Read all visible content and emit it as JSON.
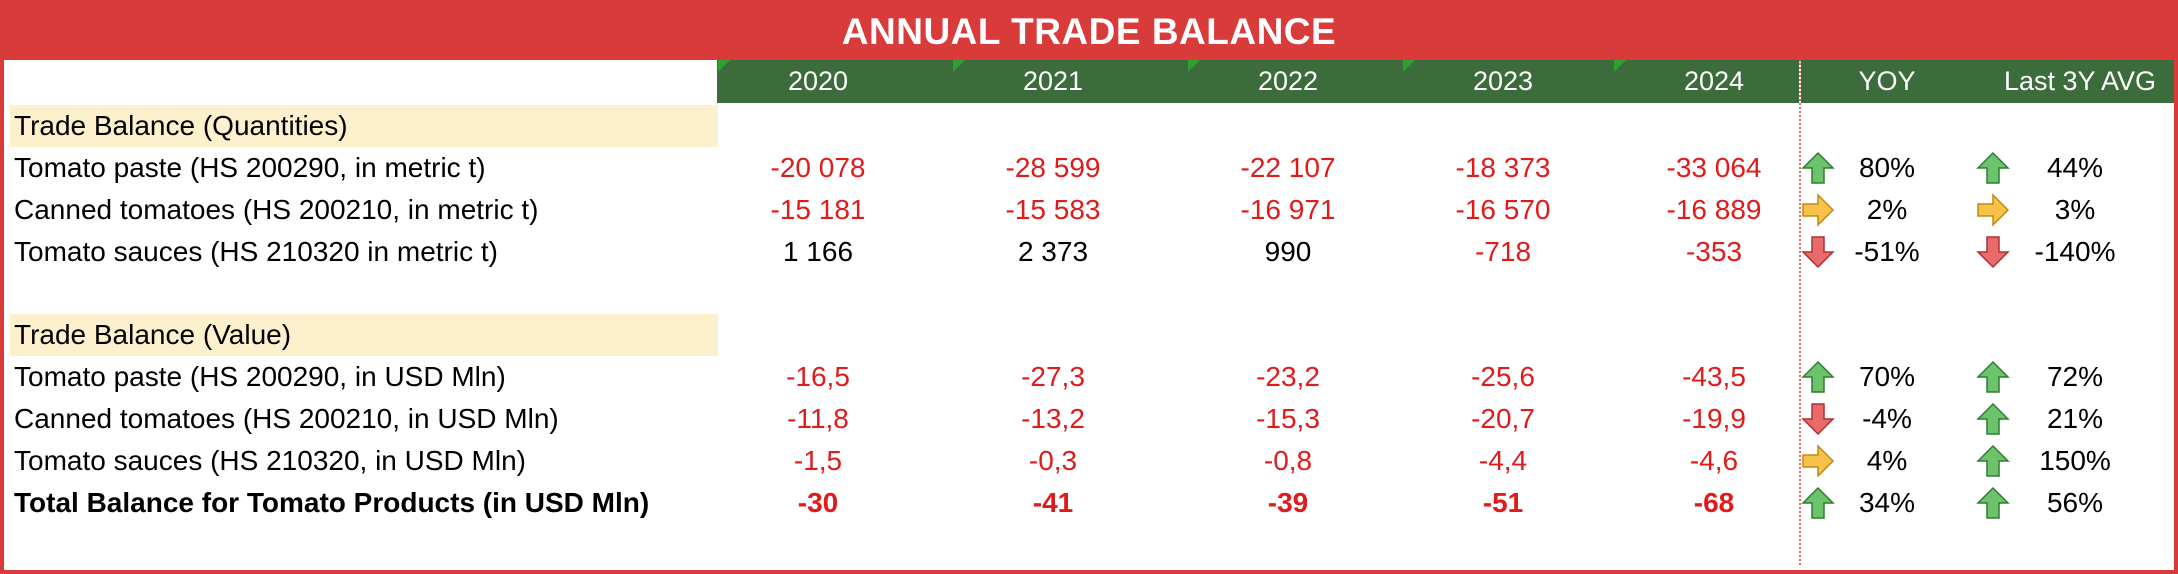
{
  "title": "ANNUAL TRADE BALANCE",
  "years": [
    "2020",
    "2021",
    "2022",
    "2023",
    "2024"
  ],
  "metrics_headers": [
    "YOY",
    "Last 3Y AVG"
  ],
  "sections": [
    {
      "heading": "Trade Balance (Quantities)",
      "rows": [
        {
          "label": "Tomato paste (HS 200290, in metric t)",
          "values": [
            "-20 078",
            "-28 599",
            "-22 107",
            "-18 373",
            "-33 064"
          ],
          "yoy": "80%",
          "yoy_icon": "up-arrow-icon",
          "avg": "44%",
          "avg_icon": "up-arrow-icon"
        },
        {
          "label": "Canned tomatoes (HS 200210, in metric t)",
          "values": [
            "-15 181",
            "-15 583",
            "-16 971",
            "-16 570",
            "-16 889"
          ],
          "yoy": "2%",
          "yoy_icon": "right-arrow-icon",
          "avg": "3%",
          "avg_icon": "right-arrow-icon"
        },
        {
          "label": "Tomato sauces (HS 210320 in metric t)",
          "values": [
            "1 166",
            "2 373",
            "990",
            "-718",
            "-353"
          ],
          "yoy": "-51%",
          "yoy_icon": "down-arrow-icon",
          "avg": "-140%",
          "avg_icon": "down-arrow-icon"
        }
      ]
    },
    {
      "heading": "Trade Balance (Value)",
      "rows": [
        {
          "label": "Tomato paste (HS 200290, in USD Mln)",
          "values": [
            "-16,5",
            "-27,3",
            "-23,2",
            "-25,6",
            "-43,5"
          ],
          "yoy": "70%",
          "yoy_icon": "up-arrow-icon",
          "avg": "72%",
          "avg_icon": "up-arrow-icon"
        },
        {
          "label": "Canned tomatoes (HS 200210, in USD Mln)",
          "values": [
            "-11,8",
            "-13,2",
            "-15,3",
            "-20,7",
            "-19,9"
          ],
          "yoy": "-4%",
          "yoy_icon": "down-arrow-icon",
          "avg": "21%",
          "avg_icon": "up-arrow-icon"
        },
        {
          "label": "Tomato sauces (HS 210320, in USD Mln)",
          "values": [
            "-1,5",
            "-0,3",
            "-0,8",
            "-4,4",
            "-4,6"
          ],
          "yoy": "4%",
          "yoy_icon": "right-arrow-icon",
          "avg": "150%",
          "avg_icon": "up-arrow-icon"
        }
      ]
    }
  ],
  "total": {
    "label": "Total Balance for Tomato Products (in USD Mln)",
    "values": [
      "-30",
      "-41",
      "-39",
      "-51",
      "-68"
    ],
    "yoy": "34%",
    "yoy_icon": "up-arrow-icon",
    "avg": "56%",
    "avg_icon": "up-arrow-icon"
  },
  "colors": {
    "title_bg": "#d93a3a",
    "header_bg": "#3c6b3c",
    "negative": "#e01b1b",
    "section_bg": "#fdf0cc",
    "up": "#6cc36c",
    "right": "#f6c24a",
    "down": "#e86a6a"
  }
}
